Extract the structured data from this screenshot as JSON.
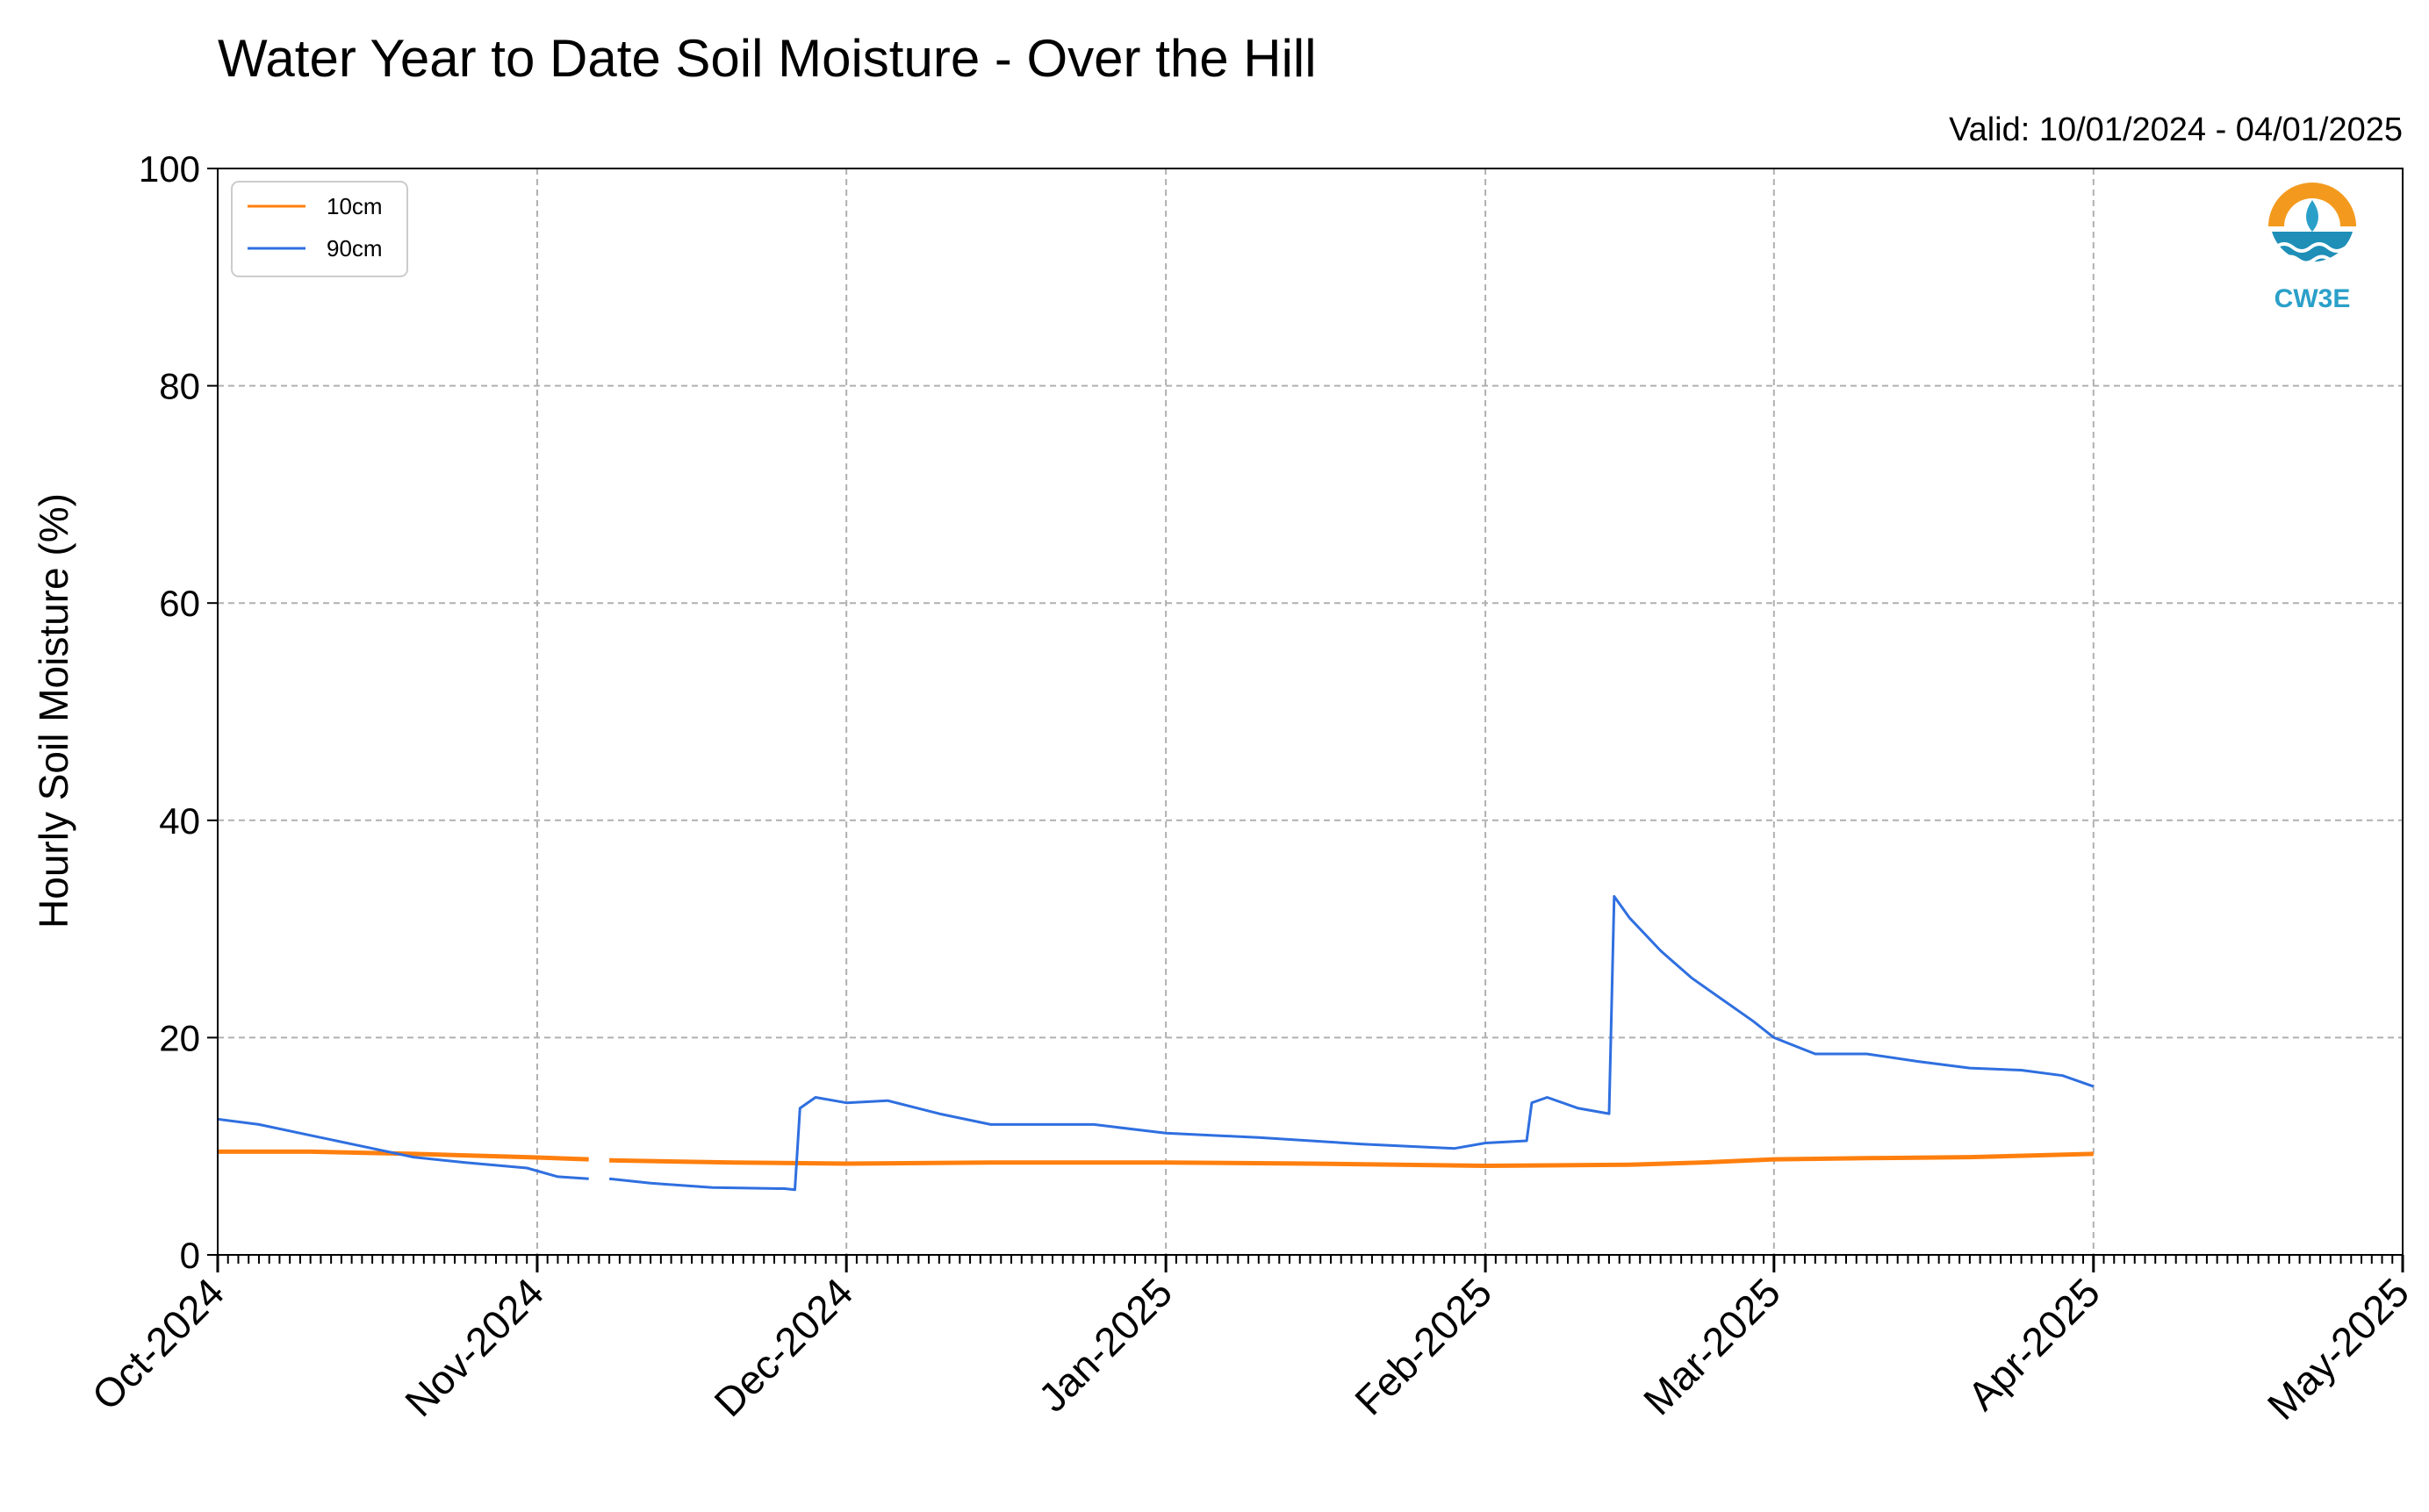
{
  "chart_data": {
    "type": "line",
    "title": "Water Year to Date Soil Moisture - Over the Hill",
    "subtitle": "Valid: 10/01/2024 - 04/01/2025",
    "ylabel": "Hourly Soil Moisture (%)",
    "xlabel": "",
    "ylim": [
      0,
      100
    ],
    "yticks": [
      "0",
      "20",
      "40",
      "60",
      "80",
      "100"
    ],
    "xlim": [
      "2024-10-01",
      "2025-05-01"
    ],
    "xticks": [
      {
        "date": "2024-10-01",
        "label": "Oct-2024"
      },
      {
        "date": "2024-11-01",
        "label": "Nov-2024"
      },
      {
        "date": "2024-12-01",
        "label": "Dec-2024"
      },
      {
        "date": "2025-01-01",
        "label": "Jan-2025"
      },
      {
        "date": "2025-02-01",
        "label": "Feb-2025"
      },
      {
        "date": "2025-03-01",
        "label": "Mar-2025"
      },
      {
        "date": "2025-04-01",
        "label": "Apr-2025"
      },
      {
        "date": "2025-05-01",
        "label": "May-2025"
      }
    ],
    "grid": true,
    "legend_position": "top-left",
    "series": [
      {
        "name": "10cm",
        "color": "#ff7f0e",
        "segments": [
          [
            [
              "2024-10-01",
              9.5
            ],
            [
              "2024-10-10",
              9.5
            ],
            [
              "2024-10-20",
              9.3
            ],
            [
              "2024-10-31",
              9.0
            ],
            [
              "2024-11-06",
              8.8
            ]
          ],
          [
            [
              "2024-11-08",
              8.7
            ],
            [
              "2024-11-20",
              8.5
            ],
            [
              "2024-12-01",
              8.4
            ],
            [
              "2024-12-15",
              8.5
            ],
            [
              "2025-01-01",
              8.5
            ],
            [
              "2025-01-15",
              8.4
            ],
            [
              "2025-02-01",
              8.2
            ],
            [
              "2025-02-15",
              8.3
            ],
            [
              "2025-02-22",
              8.5
            ],
            [
              "2025-03-01",
              8.8
            ],
            [
              "2025-03-10",
              8.9
            ],
            [
              "2025-03-20",
              9.0
            ],
            [
              "2025-04-01",
              9.3
            ]
          ]
        ]
      },
      {
        "name": "90cm",
        "color": "#2f6fe0",
        "segments": [
          [
            [
              "2024-10-01",
              12.5
            ],
            [
              "2024-10-05",
              12.0
            ],
            [
              "2024-10-10",
              11.0
            ],
            [
              "2024-10-15",
              10.0
            ],
            [
              "2024-10-20",
              9.0
            ],
            [
              "2024-10-25",
              8.5
            ],
            [
              "2024-10-31",
              8.0
            ],
            [
              "2024-11-03",
              7.2
            ],
            [
              "2024-11-06",
              7.0
            ]
          ],
          [
            [
              "2024-11-08",
              7.0
            ],
            [
              "2024-11-12",
              6.6
            ],
            [
              "2024-11-18",
              6.2
            ],
            [
              "2024-11-25",
              6.1
            ],
            [
              "2024-11-26",
              6.0
            ],
            [
              "2024-11-26.5",
              13.5
            ],
            [
              "2024-11-28",
              14.5
            ],
            [
              "2024-12-01",
              14.0
            ],
            [
              "2024-12-05",
              14.2
            ],
            [
              "2024-12-10",
              13.0
            ],
            [
              "2024-12-15",
              12.0
            ],
            [
              "2024-12-20",
              12.0
            ],
            [
              "2024-12-25",
              12.0
            ],
            [
              "2025-01-01",
              11.2
            ],
            [
              "2025-01-10",
              10.8
            ],
            [
              "2025-01-20",
              10.2
            ],
            [
              "2025-01-29",
              9.8
            ],
            [
              "2025-02-01",
              10.3
            ],
            [
              "2025-02-05",
              10.5
            ],
            [
              "2025-02-05.5",
              14.0
            ],
            [
              "2025-02-07",
              14.5
            ],
            [
              "2025-02-10",
              13.5
            ],
            [
              "2025-02-13",
              13.0
            ],
            [
              "2025-02-13.5",
              33.0
            ],
            [
              "2025-02-15",
              31.0
            ],
            [
              "2025-02-18",
              28.0
            ],
            [
              "2025-02-21",
              25.5
            ],
            [
              "2025-02-24",
              23.5
            ],
            [
              "2025-02-27",
              21.5
            ],
            [
              "2025-03-01",
              20.0
            ],
            [
              "2025-03-05",
              18.5
            ],
            [
              "2025-03-10",
              18.5
            ],
            [
              "2025-03-15",
              17.8
            ],
            [
              "2025-03-20",
              17.2
            ],
            [
              "2025-03-25",
              17.0
            ],
            [
              "2025-03-29",
              16.5
            ],
            [
              "2025-04-01",
              15.5
            ]
          ]
        ]
      }
    ],
    "logo": {
      "text": "CW3E"
    }
  }
}
